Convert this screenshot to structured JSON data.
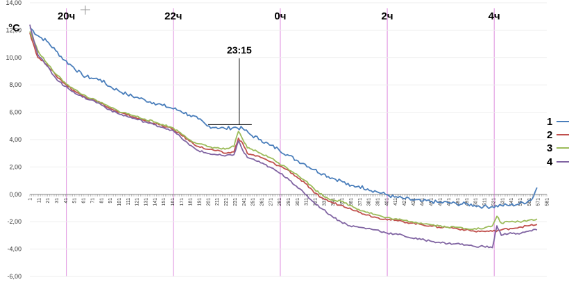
{
  "chart_data": {
    "type": "line",
    "ylabel": "°C",
    "ylim": [
      -6,
      14
    ],
    "y_ticks": [
      "14,00",
      "12,00",
      "10,00",
      "8,00",
      "6,00",
      "4,00",
      "2,00",
      "0,00",
      "-2,00",
      "-4,00",
      "-6,00"
    ],
    "xlim": [
      1,
      581
    ],
    "x_tick_labels": [
      "1",
      "11",
      "21",
      "31",
      "41",
      "51",
      "61",
      "71",
      "81",
      "91",
      "101",
      "111",
      "121",
      "131",
      "141",
      "151",
      "161",
      "171",
      "181",
      "191",
      "201",
      "211",
      "221",
      "231",
      "241",
      "251",
      "261",
      "271",
      "281",
      "291",
      "301",
      "311",
      "321",
      "331",
      "341",
      "351",
      "361",
      "371",
      "381",
      "391",
      "401",
      "411",
      "421",
      "431",
      "441",
      "451",
      "461",
      "471",
      "481",
      "491",
      "501",
      "511",
      "521",
      "531",
      "541",
      "551",
      "561",
      "571",
      "581"
    ],
    "hour_markers": [
      {
        "label": "20ч",
        "x": 42
      },
      {
        "label": "22ч",
        "x": 162
      },
      {
        "label": "0ч",
        "x": 282
      },
      {
        "label": "2ч",
        "x": 402
      },
      {
        "label": "4ч",
        "x": 522
      }
    ],
    "annotation": {
      "text": "23:15",
      "x": 236,
      "y": 5.1
    },
    "legend_position": "right",
    "grid": true,
    "series": [
      {
        "name": "1",
        "color": "#4a7ebb",
        "points": [
          [
            1,
            12.2
          ],
          [
            10,
            11.6
          ],
          [
            20,
            11.2
          ],
          [
            30,
            10.5
          ],
          [
            40,
            9.8
          ],
          [
            50,
            9.3
          ],
          [
            60,
            8.7
          ],
          [
            70,
            8.5
          ],
          [
            80,
            8.4
          ],
          [
            90,
            7.9
          ],
          [
            100,
            7.6
          ],
          [
            110,
            7.3
          ],
          [
            120,
            7.1
          ],
          [
            130,
            6.9
          ],
          [
            140,
            6.7
          ],
          [
            150,
            6.5
          ],
          [
            160,
            6.3
          ],
          [
            170,
            6.1
          ],
          [
            180,
            5.8
          ],
          [
            190,
            5.5
          ],
          [
            200,
            5.0
          ],
          [
            210,
            4.9
          ],
          [
            220,
            4.8
          ],
          [
            230,
            4.9
          ],
          [
            240,
            4.8
          ],
          [
            250,
            4.3
          ],
          [
            260,
            4.0
          ],
          [
            270,
            3.6
          ],
          [
            280,
            3.3
          ],
          [
            290,
            2.9
          ],
          [
            300,
            2.5
          ],
          [
            310,
            2.2
          ],
          [
            320,
            1.8
          ],
          [
            330,
            1.5
          ],
          [
            340,
            1.2
          ],
          [
            350,
            1.0
          ],
          [
            360,
            0.6
          ],
          [
            370,
            0.6
          ],
          [
            380,
            0.4
          ],
          [
            390,
            0.2
          ],
          [
            400,
            0.0
          ],
          [
            410,
            -0.2
          ],
          [
            420,
            -0.3
          ],
          [
            430,
            -0.4
          ],
          [
            440,
            -0.5
          ],
          [
            450,
            -0.5
          ],
          [
            460,
            -0.6
          ],
          [
            470,
            -0.6
          ],
          [
            480,
            -0.7
          ],
          [
            490,
            -0.7
          ],
          [
            500,
            -0.8
          ],
          [
            510,
            -0.9
          ],
          [
            520,
            -0.9
          ],
          [
            530,
            -0.8
          ],
          [
            540,
            -0.8
          ],
          [
            550,
            -0.7
          ],
          [
            560,
            -0.5
          ],
          [
            565,
            -0.3
          ],
          [
            568,
            0.2
          ],
          [
            570,
            0.5
          ]
        ]
      },
      {
        "name": "2",
        "color": "#c0504d",
        "points": [
          [
            1,
            11.8
          ],
          [
            10,
            10.0
          ],
          [
            20,
            9.5
          ],
          [
            30,
            8.7
          ],
          [
            40,
            8.1
          ],
          [
            50,
            7.6
          ],
          [
            60,
            7.2
          ],
          [
            70,
            7.0
          ],
          [
            80,
            6.7
          ],
          [
            90,
            6.3
          ],
          [
            100,
            6.0
          ],
          [
            110,
            5.8
          ],
          [
            120,
            5.6
          ],
          [
            130,
            5.4
          ],
          [
            140,
            5.2
          ],
          [
            150,
            5.0
          ],
          [
            160,
            4.8
          ],
          [
            170,
            4.4
          ],
          [
            180,
            3.9
          ],
          [
            190,
            3.5
          ],
          [
            200,
            3.3
          ],
          [
            210,
            3.2
          ],
          [
            220,
            3.0
          ],
          [
            230,
            3.1
          ],
          [
            235,
            4.1
          ],
          [
            240,
            3.7
          ],
          [
            245,
            3.0
          ],
          [
            250,
            2.9
          ],
          [
            260,
            2.7
          ],
          [
            270,
            2.4
          ],
          [
            280,
            2.1
          ],
          [
            290,
            1.8
          ],
          [
            300,
            1.3
          ],
          [
            310,
            0.8
          ],
          [
            320,
            0.1
          ],
          [
            330,
            -0.3
          ],
          [
            340,
            -0.6
          ],
          [
            350,
            -0.8
          ],
          [
            360,
            -1.0
          ],
          [
            370,
            -1.3
          ],
          [
            380,
            -1.5
          ],
          [
            390,
            -1.7
          ],
          [
            400,
            -1.8
          ],
          [
            410,
            -1.9
          ],
          [
            420,
            -2.0
          ],
          [
            430,
            -2.1
          ],
          [
            440,
            -2.2
          ],
          [
            450,
            -2.3
          ],
          [
            460,
            -2.4
          ],
          [
            470,
            -2.4
          ],
          [
            480,
            -2.5
          ],
          [
            490,
            -2.6
          ],
          [
            500,
            -2.7
          ],
          [
            510,
            -2.7
          ],
          [
            520,
            -2.7
          ],
          [
            530,
            -2.6
          ],
          [
            540,
            -2.5
          ],
          [
            550,
            -2.4
          ],
          [
            560,
            -2.3
          ],
          [
            570,
            -2.2
          ]
        ]
      },
      {
        "name": "3",
        "color": "#9bbb59",
        "points": [
          [
            1,
            11.9
          ],
          [
            10,
            10.5
          ],
          [
            20,
            9.6
          ],
          [
            30,
            8.8
          ],
          [
            40,
            8.2
          ],
          [
            50,
            7.7
          ],
          [
            60,
            7.3
          ],
          [
            70,
            7.0
          ],
          [
            80,
            6.7
          ],
          [
            90,
            6.4
          ],
          [
            100,
            6.1
          ],
          [
            110,
            5.9
          ],
          [
            120,
            5.7
          ],
          [
            130,
            5.5
          ],
          [
            140,
            5.3
          ],
          [
            150,
            5.1
          ],
          [
            160,
            4.9
          ],
          [
            170,
            4.5
          ],
          [
            180,
            4.0
          ],
          [
            190,
            3.7
          ],
          [
            200,
            3.5
          ],
          [
            210,
            3.4
          ],
          [
            220,
            3.3
          ],
          [
            230,
            3.5
          ],
          [
            235,
            4.6
          ],
          [
            240,
            4.0
          ],
          [
            245,
            3.4
          ],
          [
            250,
            3.3
          ],
          [
            260,
            3.0
          ],
          [
            270,
            2.7
          ],
          [
            280,
            2.3
          ],
          [
            290,
            1.9
          ],
          [
            300,
            1.5
          ],
          [
            310,
            1.0
          ],
          [
            320,
            0.4
          ],
          [
            330,
            -0.1
          ],
          [
            340,
            -0.4
          ],
          [
            350,
            -0.5
          ],
          [
            360,
            -0.8
          ],
          [
            370,
            -1.1
          ],
          [
            380,
            -1.3
          ],
          [
            390,
            -1.5
          ],
          [
            400,
            -1.7
          ],
          [
            410,
            -1.8
          ],
          [
            420,
            -1.9
          ],
          [
            430,
            -2.0
          ],
          [
            440,
            -2.1
          ],
          [
            450,
            -2.2
          ],
          [
            460,
            -2.3
          ],
          [
            470,
            -2.4
          ],
          [
            480,
            -2.4
          ],
          [
            490,
            -2.5
          ],
          [
            500,
            -2.5
          ],
          [
            510,
            -2.5
          ],
          [
            520,
            -2.3
          ],
          [
            525,
            -1.6
          ],
          [
            530,
            -2.1
          ],
          [
            540,
            -2.0
          ],
          [
            550,
            -2.0
          ],
          [
            560,
            -1.9
          ],
          [
            570,
            -1.8
          ]
        ]
      },
      {
        "name": "4",
        "color": "#8064a2",
        "points": [
          [
            1,
            12.4
          ],
          [
            10,
            10.2
          ],
          [
            20,
            9.4
          ],
          [
            30,
            8.5
          ],
          [
            40,
            7.9
          ],
          [
            50,
            7.5
          ],
          [
            60,
            7.1
          ],
          [
            70,
            6.9
          ],
          [
            80,
            6.6
          ],
          [
            90,
            6.2
          ],
          [
            100,
            5.9
          ],
          [
            110,
            5.7
          ],
          [
            120,
            5.5
          ],
          [
            130,
            5.3
          ],
          [
            140,
            5.1
          ],
          [
            150,
            4.9
          ],
          [
            160,
            4.7
          ],
          [
            170,
            4.2
          ],
          [
            180,
            3.6
          ],
          [
            190,
            3.2
          ],
          [
            200,
            3.0
          ],
          [
            210,
            2.9
          ],
          [
            220,
            2.8
          ],
          [
            230,
            2.9
          ],
          [
            235,
            3.9
          ],
          [
            240,
            3.2
          ],
          [
            245,
            2.7
          ],
          [
            250,
            2.6
          ],
          [
            260,
            2.3
          ],
          [
            270,
            2.0
          ],
          [
            280,
            1.6
          ],
          [
            290,
            1.2
          ],
          [
            300,
            0.6
          ],
          [
            310,
            0.0
          ],
          [
            320,
            -0.6
          ],
          [
            330,
            -1.1
          ],
          [
            340,
            -1.6
          ],
          [
            350,
            -2.0
          ],
          [
            360,
            -2.3
          ],
          [
            370,
            -2.4
          ],
          [
            380,
            -2.5
          ],
          [
            390,
            -2.6
          ],
          [
            400,
            -2.8
          ],
          [
            410,
            -2.9
          ],
          [
            420,
            -3.0
          ],
          [
            430,
            -3.2
          ],
          [
            440,
            -3.3
          ],
          [
            450,
            -3.4
          ],
          [
            460,
            -3.5
          ],
          [
            470,
            -3.6
          ],
          [
            480,
            -3.6
          ],
          [
            490,
            -3.7
          ],
          [
            500,
            -3.8
          ],
          [
            510,
            -3.8
          ],
          [
            520,
            -3.9
          ],
          [
            525,
            -2.3
          ],
          [
            530,
            -3.0
          ],
          [
            540,
            -2.8
          ],
          [
            550,
            -2.9
          ],
          [
            560,
            -2.7
          ],
          [
            570,
            -2.6
          ]
        ]
      }
    ]
  }
}
